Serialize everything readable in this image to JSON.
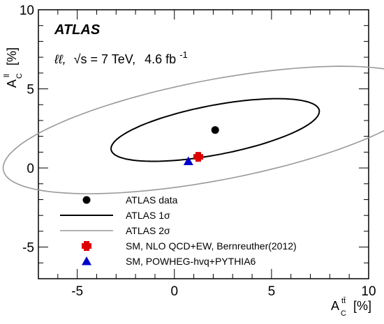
{
  "chart_data": {
    "type": "scatter",
    "brand": "ATLAS",
    "info": {
      "channel": "ℓℓ,",
      "energy": "√s = 7 TeV,",
      "lumi": "4.6 fb",
      "lumi_exp": "-1"
    },
    "xaxis": {
      "label_main": "A",
      "label_sub": "C",
      "label_sup": "tt̄",
      "label_unit": "[%]",
      "range": [
        -7,
        10
      ],
      "ticks": [
        -5,
        0,
        5,
        10
      ],
      "tick_labels": [
        "-5",
        "0",
        "5",
        "10"
      ]
    },
    "yaxis": {
      "label_main": "A",
      "label_sub": "C",
      "label_sup": "ll",
      "label_unit": "[%]",
      "range": [
        -7,
        10
      ],
      "ticks": [
        -5,
        0,
        5,
        10
      ],
      "tick_labels": [
        "-5",
        "0",
        "5",
        "10"
      ]
    },
    "grid": false,
    "series": [
      {
        "name": "ATLAS data",
        "kind": "point",
        "marker": "circle",
        "color": "#000000",
        "x": 2.1,
        "y": 2.4
      },
      {
        "name": "ATLAS 1σ",
        "kind": "contour",
        "color": "#000000",
        "center": [
          2.1,
          2.4
        ],
        "semi_major": 5.5,
        "semi_minor": 1.55,
        "angle_deg": 13.5
      },
      {
        "name": "ATLAS 2σ",
        "kind": "contour",
        "color": "#999999",
        "center": [
          2.1,
          2.4
        ],
        "semi_major": 11.2,
        "semi_minor": 3.15,
        "angle_deg": 13.5
      },
      {
        "name": "SM, NLO QCD+EW, Bernreuther(2012)",
        "kind": "point",
        "marker": "cross",
        "color": "#dd0000",
        "x": 1.23,
        "y": 0.7
      },
      {
        "name": "SM, POWHEG-hvq+PYTHIA6",
        "kind": "point",
        "marker": "triangle",
        "color": "#0000cc",
        "x": 0.72,
        "y": 0.42
      }
    ],
    "legend_position": "bottom-left"
  }
}
